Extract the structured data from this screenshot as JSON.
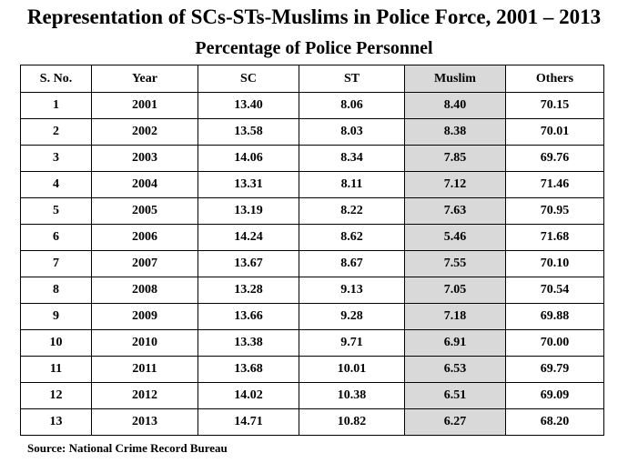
{
  "title": "Representation of SCs-STs-Muslims in Police Force, 2001 – 2013",
  "subtitle": "Percentage of Police Personnel",
  "source": "Source: National Crime Record Bureau",
  "colors": {
    "highlight_column": "#d9d9d9",
    "border": "#000000"
  },
  "chart_data": {
    "type": "table",
    "title": "Representation of SCs-STs-Muslims in Police Force, 2001 – 2013",
    "subtitle": "Percentage of Police Personnel",
    "highlighted_column": "Muslim",
    "columns": [
      "S. No.",
      "Year",
      "SC",
      "ST",
      "Muslim",
      "Others"
    ],
    "rows": [
      [
        "1",
        "2001",
        "13.40",
        "8.06",
        "8.40",
        "70.15"
      ],
      [
        "2",
        "2002",
        "13.58",
        "8.03",
        "8.38",
        "70.01"
      ],
      [
        "3",
        "2003",
        "14.06",
        "8.34",
        "7.85",
        "69.76"
      ],
      [
        "4",
        "2004",
        "13.31",
        "8.11",
        "7.12",
        "71.46"
      ],
      [
        "5",
        "2005",
        "13.19",
        "8.22",
        "7.63",
        "70.95"
      ],
      [
        "6",
        "2006",
        "14.24",
        "8.62",
        "5.46",
        "71.68"
      ],
      [
        "7",
        "2007",
        "13.67",
        "8.67",
        "7.55",
        "70.10"
      ],
      [
        "8",
        "2008",
        "13.28",
        "9.13",
        "7.05",
        "70.54"
      ],
      [
        "9",
        "2009",
        "13.66",
        "9.28",
        "7.18",
        "69.88"
      ],
      [
        "10",
        "2010",
        "13.38",
        "9.71",
        "6.91",
        "70.00"
      ],
      [
        "11",
        "2011",
        "13.68",
        "10.01",
        "6.53",
        "69.79"
      ],
      [
        "12",
        "2012",
        "14.02",
        "10.38",
        "6.51",
        "69.09"
      ],
      [
        "13",
        "2013",
        "14.71",
        "10.82",
        "6.27",
        "68.20"
      ]
    ]
  }
}
